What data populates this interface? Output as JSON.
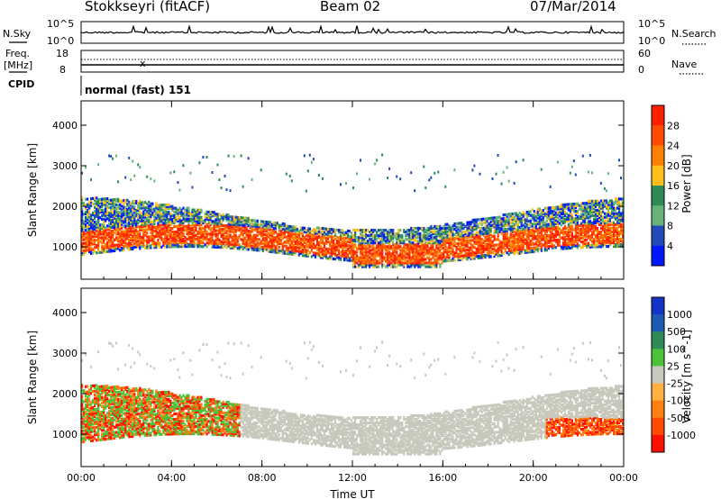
{
  "header": {
    "station": "Stokkseyri (fitACF)",
    "beam": "Beam 02",
    "date": "07/Mar/2014"
  },
  "top_panels": {
    "nsky_label": "N.Sky",
    "nsearch_label": "N.Search",
    "noise_ticks_left": [
      "10^5",
      "10^0"
    ],
    "noise_ticks_right": [
      "10^5",
      "10^0"
    ],
    "freq_label": "Freq.",
    "freq_unit": "[MHz]",
    "freq_ticks": [
      "18",
      "8"
    ],
    "nave_label": "Nave",
    "nave_ticks": [
      "60",
      "0"
    ],
    "cpid_label": "CPID",
    "cpid_value": "normal (fast) 151"
  },
  "chart_data": [
    {
      "type": "heatmap",
      "title": "",
      "xlabel": "",
      "ylabel": "Slant Range [km]",
      "ylim": [
        200,
        4600
      ],
      "y_ticks": [
        "1000",
        "2000",
        "3000",
        "4000"
      ],
      "x_ticks": [
        "00:00",
        "04:00",
        "08:00",
        "12:00",
        "16:00",
        "20:00",
        "00:00"
      ],
      "x_hours": [
        0,
        4,
        8,
        12,
        16,
        20,
        24
      ],
      "colorbar": {
        "label": "Power [dB]",
        "labels": [
          "28",
          "24",
          "20",
          "16",
          "12",
          "8",
          "4"
        ],
        "colors": [
          "#ff2000",
          "#ff4a00",
          "#ff8000",
          "#ffbf1a",
          "#2e8b57",
          "#66b37a",
          "#204ab8",
          "#0018ff"
        ]
      }
    },
    {
      "type": "heatmap",
      "title": "",
      "xlabel": "Time UT",
      "ylabel": "Slant Range [km]",
      "ylim": [
        200,
        4600
      ],
      "y_ticks": [
        "1000",
        "2000",
        "3000",
        "4000"
      ],
      "x_ticks": [
        "00:00",
        "04:00",
        "08:00",
        "12:00",
        "16:00",
        "20:00",
        "00:00"
      ],
      "x_hours": [
        0,
        4,
        8,
        12,
        16,
        20,
        24
      ],
      "colorbar": {
        "label": "Velocity [m s^-1]",
        "labels": [
          "1000",
          "500",
          "100",
          "25",
          "-25",
          "-100",
          "-500",
          "-1000"
        ],
        "colors": [
          "#1434c8",
          "#1e5ab4",
          "#2e8b57",
          "#4cc23a",
          "#c8c8bc",
          "#ffb040",
          "#ff8010",
          "#ff4a00",
          "#ff1000"
        ]
      }
    }
  ]
}
